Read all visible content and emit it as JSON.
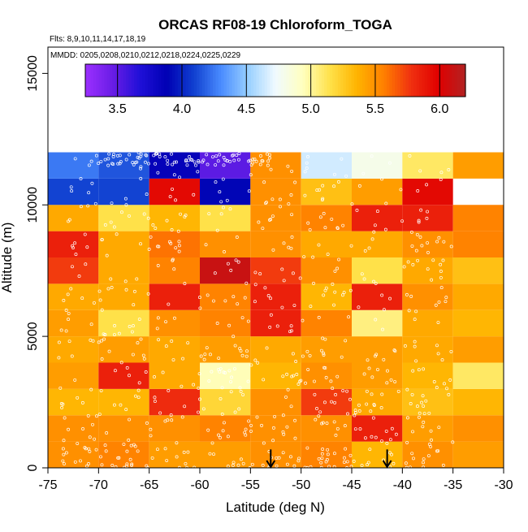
{
  "chart_data": {
    "type": "heatmap",
    "title": "ORCAS RF08-19 Chloroform_TOGA",
    "flights_note": "Flts: 8,9,10,11,14,17,18,19",
    "dates_note": "MMDD: 0205,0208,0210,0212,0218,0224,0225,0229",
    "xlabel": "Latitude (deg N)",
    "ylabel": "Altitude (m)",
    "xlim": [
      -75,
      -30
    ],
    "ylim": [
      0,
      16000
    ],
    "x_ticks": [
      -75,
      -70,
      -65,
      -60,
      -55,
      -50,
      -45,
      -40,
      -35,
      -30
    ],
    "y_ticks": [
      0,
      5000,
      10000,
      15000
    ],
    "colorbar": {
      "range": [
        3.25,
        6.2
      ],
      "ticks": [
        3.5,
        4.0,
        4.5,
        5.0,
        5.5,
        6.0
      ],
      "tick_labels": [
        "3.5",
        "4.0",
        "4.5",
        "5.0",
        "5.5",
        "6.0"
      ],
      "colors": [
        "#9B30FF",
        "#6A1DE6",
        "#2010D8",
        "#0000B4",
        "#1040D0",
        "#4A8CFF",
        "#98D0FF",
        "#F0FAFF",
        "#FFFFC0",
        "#FFE24A",
        "#FFB400",
        "#FF7F00",
        "#F03010",
        "#E00000",
        "#B22222"
      ]
    },
    "cell_lat_bins": [
      -75,
      -70,
      -65,
      -60,
      -55,
      -50,
      -45,
      -40,
      -35,
      -30
    ],
    "cell_alt_bins": [
      0,
      1000,
      2000,
      3000,
      4000,
      5000,
      6000,
      7000,
      8000,
      9000,
      10000,
      11000,
      12000
    ],
    "cells": [
      [
        5.5,
        5.55,
        5.45,
        5.45,
        5.5,
        5.55,
        5.35,
        5.5,
        5.45,
        null
      ],
      [
        5.5,
        5.5,
        5.5,
        5.55,
        5.5,
        5.5,
        5.85,
        5.45,
        5.5,
        null
      ],
      [
        5.35,
        5.35,
        5.8,
        5.2,
        5.5,
        5.75,
        5.4,
        5.3,
        5.35,
        null
      ],
      [
        5.45,
        5.85,
        5.4,
        4.95,
        5.35,
        5.5,
        5.45,
        5.35,
        5.1,
        null
      ],
      [
        5.4,
        5.45,
        5.4,
        5.45,
        5.4,
        5.45,
        5.45,
        5.4,
        5.45,
        null
      ],
      [
        5.45,
        5.15,
        5.5,
        5.55,
        5.85,
        5.55,
        5.05,
        5.4,
        5.35,
        null
      ],
      [
        5.4,
        5.4,
        5.85,
        5.55,
        5.85,
        5.35,
        5.85,
        5.5,
        5.4,
        null
      ],
      [
        5.75,
        5.4,
        5.55,
        6.1,
        5.75,
        5.5,
        5.15,
        5.4,
        5.3,
        null
      ],
      [
        5.85,
        5.4,
        5.6,
        5.5,
        5.5,
        5.4,
        5.4,
        5.5,
        5.55,
        null
      ],
      [
        5.4,
        5.15,
        5.35,
        5.15,
        5.5,
        5.55,
        5.85,
        5.85,
        5.55,
        null
      ],
      [
        4.1,
        4.1,
        5.95,
        3.9,
        5.5,
        5.3,
        5.45,
        5.95,
        null,
        null
      ],
      [
        4.25,
        4.15,
        3.85,
        3.5,
        5.5,
        4.65,
        4.8,
        5.1,
        5.45,
        null
      ]
    ],
    "annotations": [
      {
        "type": "arrow-down",
        "x": -53,
        "y_top": 700
      },
      {
        "type": "arrow-down",
        "x": -41.5,
        "y_top": 700
      }
    ]
  }
}
